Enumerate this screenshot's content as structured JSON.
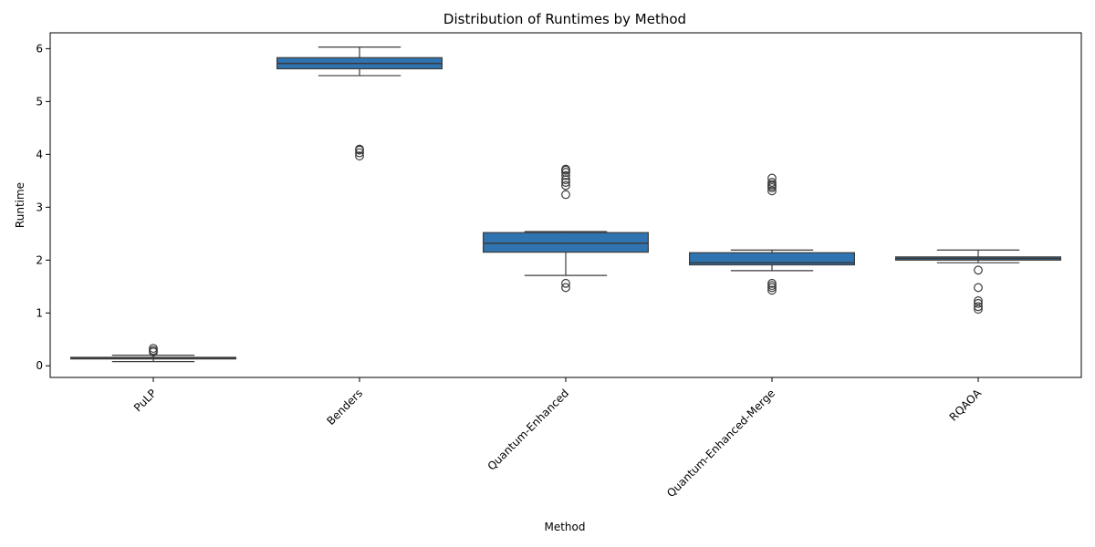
{
  "chart_data": {
    "type": "box",
    "title": "Distribution of Runtimes by Method",
    "xlabel": "Method",
    "ylabel": "Runtime",
    "ylim": [
      -0.22,
      6.3
    ],
    "yticks": [
      0,
      1,
      2,
      3,
      4,
      5,
      6
    ],
    "box_color": "#2f74b0",
    "edge_color": "#3b3b3b",
    "categories": [
      "PuLP",
      "Benders",
      "Quantum-Enhanced",
      "Quantum-Enhanced-Merge",
      "RQAOA"
    ],
    "boxes": [
      {
        "category": "PuLP",
        "whislo": 0.08,
        "q1": 0.13,
        "med": 0.15,
        "q3": 0.16,
        "whishi": 0.2,
        "fliers": [
          0.26,
          0.29,
          0.33
        ]
      },
      {
        "category": "Benders",
        "whislo": 5.49,
        "q1": 5.62,
        "med": 5.72,
        "q3": 5.83,
        "whishi": 6.03,
        "fliers": [
          3.97,
          4.03,
          4.08,
          4.1
        ]
      },
      {
        "category": "Quantum-Enhanced",
        "whislo": 1.71,
        "q1": 2.15,
        "med": 2.32,
        "q3": 2.52,
        "whishi": 2.54,
        "fliers": [
          1.48,
          1.56,
          3.24,
          3.41,
          3.47,
          3.52,
          3.6,
          3.66,
          3.7,
          3.72
        ]
      },
      {
        "category": "Quantum-Enhanced-Merge",
        "whislo": 1.8,
        "q1": 1.91,
        "med": 1.95,
        "q3": 2.14,
        "whishi": 2.19,
        "fliers": [
          1.43,
          1.48,
          1.52,
          1.56,
          3.31,
          3.37,
          3.4,
          3.43,
          3.47,
          3.55
        ]
      },
      {
        "category": "RQAOA",
        "whislo": 1.95,
        "q1": 2.0,
        "med": 2.03,
        "q3": 2.06,
        "whishi": 2.19,
        "fliers": [
          1.07,
          1.12,
          1.18,
          1.23,
          1.48,
          1.81
        ]
      }
    ]
  }
}
